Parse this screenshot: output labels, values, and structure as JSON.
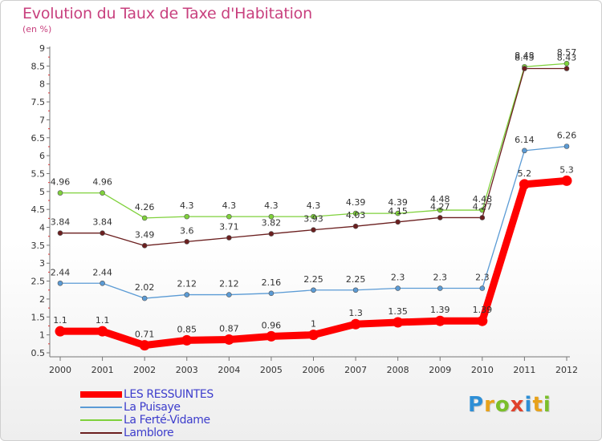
{
  "header": {
    "title": "Evolution du Taux de Taxe d'Habitation",
    "unit": "(en %)"
  },
  "logo": {
    "text": "Proxiti"
  },
  "chart_data": {
    "type": "line",
    "title": "Evolution du Taux de Taxe d'Habitation",
    "ylabel": "(en %)",
    "xlabel": "",
    "x": [
      "2000",
      "2001",
      "2002",
      "2003",
      "2004",
      "2005",
      "2006",
      "2007",
      "2008",
      "2009",
      "2010",
      "2011",
      "2012"
    ],
    "ylim": [
      0.5,
      9
    ],
    "yticks": [
      0.5,
      1,
      1.5,
      2,
      2.5,
      3,
      3.5,
      4,
      4.5,
      5,
      5.5,
      6,
      6.5,
      7,
      7.5,
      8,
      8.5,
      9
    ],
    "grid": false,
    "legend_position": "bottom-left",
    "series": [
      {
        "name": "LES RESSUINTES",
        "color": "#ff0000",
        "values": [
          1.1,
          1.1,
          0.71,
          0.85,
          0.87,
          0.96,
          1,
          1.3,
          1.35,
          1.39,
          1.39,
          5.2,
          5.3
        ],
        "labels": [
          "1.1",
          "1.1",
          "0.71",
          "0.85",
          "0.87",
          "0.96",
          "1",
          "1.3",
          "1.35",
          "1.39",
          "1.39",
          "5.2",
          "5.3"
        ]
      },
      {
        "name": "La Puisaye",
        "color": "#5b9bd5",
        "values": [
          2.44,
          2.44,
          2.02,
          2.12,
          2.12,
          2.16,
          2.25,
          2.25,
          2.3,
          2.3,
          2.3,
          6.14,
          6.26
        ],
        "labels": [
          "2.44",
          "2.44",
          "2.02",
          "2.12",
          "2.12",
          "2.16",
          "2.25",
          "2.25",
          "2.3",
          "2.3",
          "2.3",
          "6.14",
          "6.26"
        ]
      },
      {
        "name": "La Ferté-Vidame",
        "color": "#7fd13b",
        "values": [
          4.96,
          4.96,
          4.26,
          4.3,
          4.3,
          4.3,
          4.3,
          4.39,
          4.39,
          4.48,
          4.48,
          8.48,
          8.57
        ],
        "labels": [
          "4.96",
          "4.96",
          "4.26",
          "4.3",
          "4.3",
          "4.3",
          "4.3",
          "4.39",
          "4.39",
          "4.48",
          "4.48",
          "8.48",
          "8.57"
        ]
      },
      {
        "name": "Lamblore",
        "color": "#6b1f1f",
        "values": [
          3.84,
          3.84,
          3.49,
          3.6,
          3.71,
          3.82,
          3.93,
          4.03,
          4.15,
          4.27,
          4.27,
          8.43,
          8.43
        ],
        "labels": [
          "3.84",
          "3.84",
          "3.49",
          "3.6",
          "3.71",
          "3.82",
          "3.93",
          "4.03",
          "4.15",
          "4.27",
          "4.27",
          "8.43",
          "8.43"
        ]
      }
    ]
  }
}
